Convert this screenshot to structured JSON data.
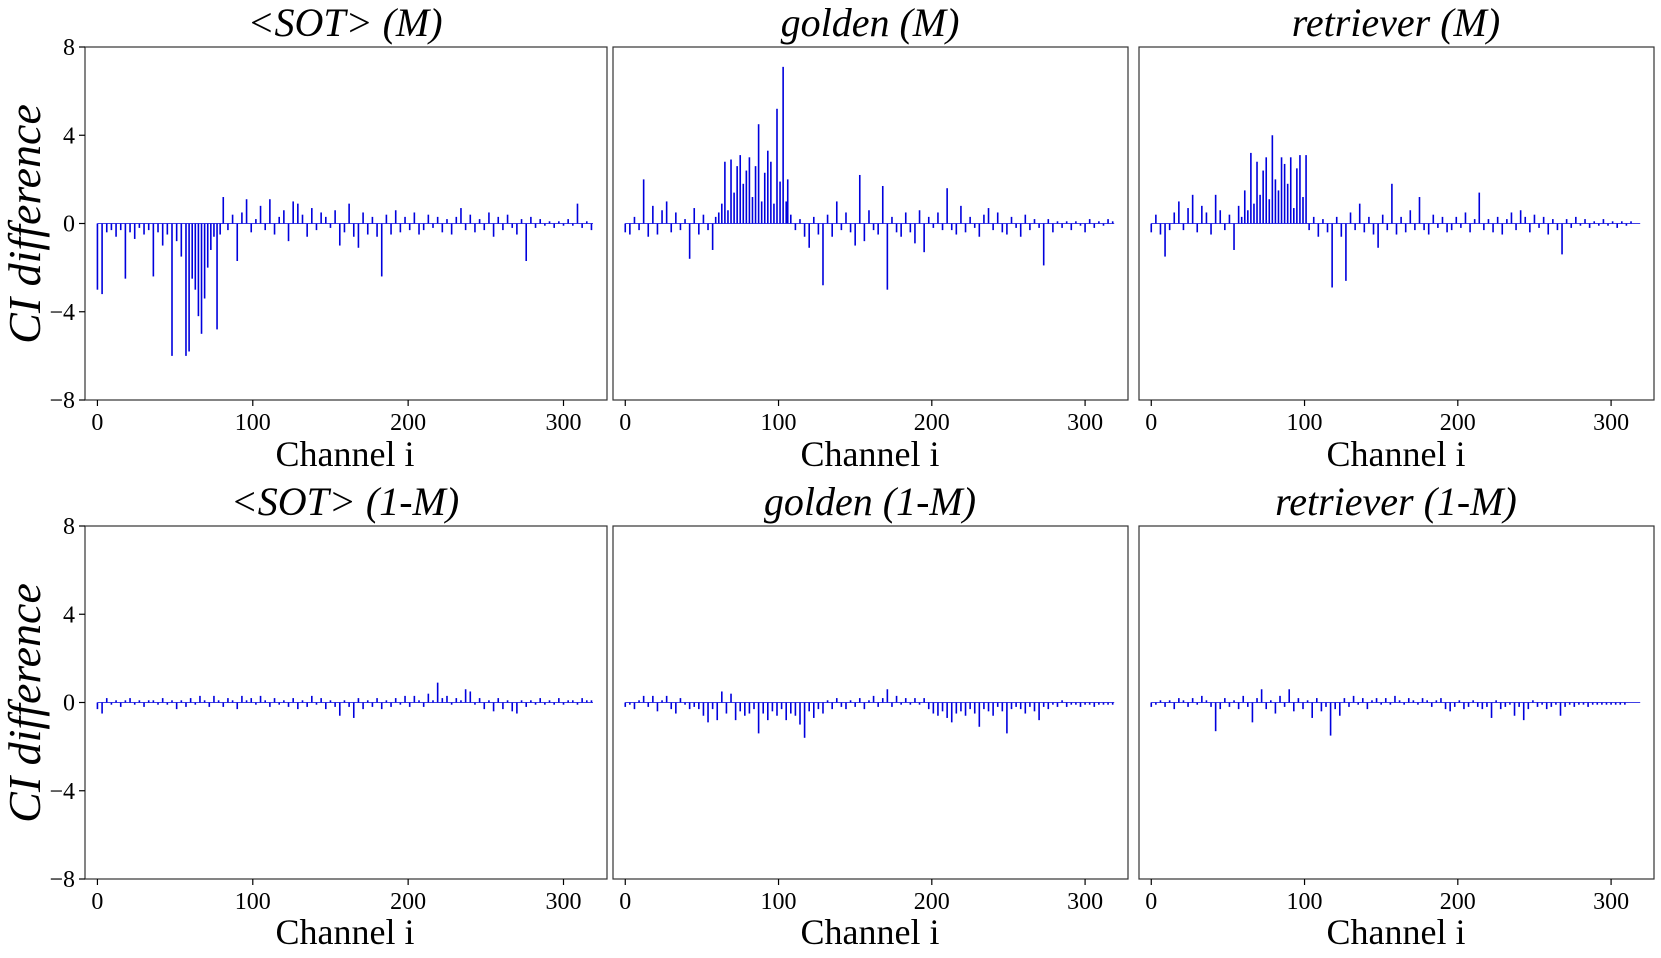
{
  "figure": {
    "y_axis_label": "CI difference",
    "x_axis_label": "Channel i"
  },
  "chart_data": [
    {
      "type": "bar",
      "title": "<SOT> (M)",
      "xlabel": "Channel i",
      "ylabel": "CI difference",
      "xlim": [
        -8,
        328
      ],
      "ylim": [
        -8,
        8
      ],
      "xticks": [
        0,
        100,
        200,
        300
      ],
      "yticks": [
        8,
        4,
        0,
        -4,
        -8
      ],
      "bar_color": "#0000dd",
      "n_channels": 320,
      "values": {
        "0": -3.0,
        "3": -3.2,
        "6": -0.4,
        "9": -0.3,
        "12": -0.6,
        "15": -0.3,
        "18": -2.5,
        "21": -0.4,
        "24": -0.7,
        "27": -0.2,
        "30": -0.5,
        "33": -0.3,
        "36": -2.4,
        "39": -0.4,
        "42": -1.0,
        "45": -0.5,
        "48": -6.0,
        "51": -0.8,
        "54": -1.5,
        "57": -6.0,
        "59": -5.8,
        "61": -2.5,
        "63": -3.0,
        "65": -4.2,
        "67": -5.0,
        "69": -3.4,
        "71": -2.0,
        "73": -1.2,
        "75": -0.6,
        "77": -4.8,
        "79": -0.5,
        "81": 1.2,
        "84": -0.3,
        "87": 0.4,
        "90": -1.7,
        "93": 0.5,
        "96": 1.1,
        "99": -0.4,
        "102": 0.2,
        "105": 0.8,
        "108": -0.3,
        "111": 1.1,
        "114": -0.5,
        "117": 0.3,
        "120": 0.6,
        "123": -0.8,
        "126": 1.0,
        "129": 0.9,
        "132": 0.4,
        "135": -0.6,
        "138": 0.7,
        "141": -0.3,
        "144": 0.5,
        "147": 0.3,
        "150": -0.2,
        "153": 0.6,
        "156": -1.0,
        "159": -0.4,
        "162": 0.9,
        "165": -0.6,
        "168": -1.1,
        "171": 0.5,
        "174": -0.5,
        "177": 0.3,
        "180": -0.6,
        "183": -2.4,
        "186": 0.4,
        "189": -0.5,
        "192": 0.6,
        "195": -0.4,
        "198": 0.3,
        "201": -0.3,
        "204": 0.5,
        "207": -0.5,
        "210": -0.3,
        "213": 0.4,
        "216": -0.2,
        "219": 0.3,
        "222": -0.4,
        "225": 0.2,
        "228": -0.5,
        "231": 0.3,
        "234": 0.7,
        "237": -0.3,
        "240": 0.4,
        "243": -0.4,
        "246": 0.2,
        "249": -0.3,
        "252": 0.5,
        "255": -0.6,
        "258": 0.3,
        "261": -0.3,
        "264": 0.4,
        "267": -0.2,
        "270": -0.5,
        "273": 0.2,
        "276": -1.7,
        "279": 0.3,
        "282": -0.2,
        "285": 0.2,
        "288": -0.1,
        "291": 0.1,
        "294": -0.2,
        "297": 0.1,
        "300": -0.1,
        "303": 0.2,
        "306": -0.1,
        "309": 0.9,
        "312": -0.2,
        "315": 0.1,
        "318": -0.3
      }
    },
    {
      "type": "bar",
      "title": "golden (M)",
      "xlabel": "Channel i",
      "ylabel": "",
      "xlim": [
        -8,
        328
      ],
      "ylim": [
        -8,
        8
      ],
      "xticks": [
        0,
        100,
        200,
        300
      ],
      "yticks": [],
      "bar_color": "#0000dd",
      "n_channels": 320,
      "values": {
        "0": -0.4,
        "3": -0.5,
        "6": 0.3,
        "9": -0.3,
        "12": 2.0,
        "15": -0.6,
        "18": 0.8,
        "21": -0.5,
        "24": 0.6,
        "27": 1.0,
        "30": -0.4,
        "33": 0.5,
        "36": -0.3,
        "39": 0.2,
        "42": -1.6,
        "45": 0.7,
        "48": -0.5,
        "51": 0.4,
        "54": -0.3,
        "57": -1.2,
        "59": 0.3,
        "61": 0.5,
        "63": 0.9,
        "65": 2.8,
        "67": 0.6,
        "69": 2.9,
        "71": 1.4,
        "73": 2.6,
        "75": 3.1,
        "77": 1.8,
        "79": 2.4,
        "81": 3.0,
        "83": 1.2,
        "85": 2.6,
        "87": 4.5,
        "89": 1.0,
        "91": 2.3,
        "93": 3.3,
        "95": 2.8,
        "97": 0.9,
        "99": 5.2,
        "101": 1.9,
        "103": 7.1,
        "105": 1.0,
        "106": 2.0,
        "108": 0.4,
        "111": -0.3,
        "114": 0.2,
        "117": -0.6,
        "120": -1.1,
        "123": 0.3,
        "126": -0.5,
        "129": -2.8,
        "132": 0.4,
        "135": -0.6,
        "138": 1.0,
        "141": -0.3,
        "144": 0.5,
        "147": -0.4,
        "150": -1.0,
        "153": 2.2,
        "156": -0.8,
        "159": 0.6,
        "162": -0.3,
        "165": -0.5,
        "168": 1.7,
        "171": -3.0,
        "174": 0.3,
        "177": -0.4,
        "180": -0.6,
        "183": 0.5,
        "186": -0.4,
        "189": -0.9,
        "192": 0.6,
        "195": -1.3,
        "198": 0.3,
        "201": -0.2,
        "204": 0.5,
        "207": -0.3,
        "210": 1.6,
        "213": -0.3,
        "216": -0.5,
        "219": 0.8,
        "222": -0.4,
        "225": 0.3,
        "228": -0.2,
        "231": -0.6,
        "234": 0.4,
        "237": 0.7,
        "240": -0.3,
        "243": 0.5,
        "246": -0.4,
        "249": -0.5,
        "252": 0.3,
        "255": -0.2,
        "258": -0.6,
        "261": 0.4,
        "264": -0.3,
        "267": 0.2,
        "270": -0.2,
        "273": -1.9,
        "276": 0.2,
        "279": -0.4,
        "282": 0.1,
        "285": -0.2,
        "288": 0.1,
        "291": -0.3,
        "294": 0.1,
        "297": -0.1,
        "300": -0.4,
        "303": 0.2,
        "306": -0.2,
        "309": 0.1,
        "312": -0.1,
        "315": 0.2,
        "318": 0.1
      }
    },
    {
      "type": "bar",
      "title": "retriever (M)",
      "xlabel": "Channel i",
      "ylabel": "",
      "xlim": [
        -8,
        328
      ],
      "ylim": [
        -8,
        8
      ],
      "xticks": [
        0,
        100,
        200,
        300
      ],
      "yticks": [],
      "bar_color": "#0000dd",
      "n_channels": 320,
      "values": {
        "0": -0.4,
        "3": 0.4,
        "6": -0.5,
        "9": -1.5,
        "12": -0.3,
        "15": 0.5,
        "18": 1.0,
        "21": -0.3,
        "24": 0.7,
        "27": 1.3,
        "30": -0.4,
        "33": 0.8,
        "36": 0.5,
        "39": -0.5,
        "42": 1.3,
        "45": 0.6,
        "48": -0.3,
        "51": 0.4,
        "54": -1.2,
        "57": 0.8,
        "59": 0.3,
        "61": 1.5,
        "63": 0.6,
        "65": 3.2,
        "67": 0.9,
        "69": 2.8,
        "71": 1.3,
        "73": 2.4,
        "75": 3.0,
        "77": 1.1,
        "79": 4.0,
        "81": 2.0,
        "83": 1.5,
        "85": 3.0,
        "87": 2.7,
        "89": 1.8,
        "91": 3.0,
        "93": 0.7,
        "95": 2.5,
        "97": 3.1,
        "99": 1.2,
        "101": 3.1,
        "103": -0.3,
        "106": 0.3,
        "109": -0.6,
        "112": 0.2,
        "115": -0.4,
        "118": -2.9,
        "121": 0.3,
        "124": -0.6,
        "127": -2.6,
        "130": 0.5,
        "133": -0.3,
        "136": 0.9,
        "139": -0.4,
        "142": 0.3,
        "145": -0.5,
        "148": -1.1,
        "151": 0.4,
        "154": -0.3,
        "157": 1.8,
        "160": -0.5,
        "163": 0.3,
        "166": -0.4,
        "169": 0.6,
        "172": -0.3,
        "175": 1.2,
        "178": -0.3,
        "181": -0.5,
        "184": 0.4,
        "187": -0.2,
        "190": 0.3,
        "193": -0.4,
        "196": -0.3,
        "199": 0.3,
        "202": -0.2,
        "205": 0.5,
        "208": -0.4,
        "211": 0.2,
        "214": 1.4,
        "217": -0.3,
        "220": 0.2,
        "223": -0.4,
        "226": 0.3,
        "229": -0.5,
        "232": 0.2,
        "235": 0.5,
        "238": -0.3,
        "241": 0.6,
        "244": 0.3,
        "247": -0.4,
        "250": 0.4,
        "253": -0.2,
        "256": 0.3,
        "259": -0.5,
        "262": 0.2,
        "265": -0.3,
        "268": -1.4,
        "271": 0.2,
        "274": -0.2,
        "277": 0.3,
        "280": -0.1,
        "283": 0.2,
        "286": -0.2,
        "289": 0.1,
        "292": -0.1,
        "295": 0.2,
        "298": -0.1,
        "301": 0.1,
        "304": -0.2,
        "307": 0.1,
        "310": -0.1,
        "313": 0.1
      }
    },
    {
      "type": "bar",
      "title": "<SOT> (1-M)",
      "xlabel": "Channel i",
      "ylabel": "CI difference",
      "xlim": [
        -8,
        328
      ],
      "ylim": [
        -8,
        8
      ],
      "xticks": [
        0,
        100,
        200,
        300
      ],
      "yticks": [
        8,
        4,
        0,
        -4,
        -8
      ],
      "bar_color": "#0000dd",
      "n_channels": 320,
      "values": {
        "0": -0.3,
        "3": -0.5,
        "6": 0.2,
        "9": -0.1,
        "12": 0.1,
        "15": -0.2,
        "18": 0.1,
        "21": 0.2,
        "24": -0.1,
        "27": 0.1,
        "30": -0.2,
        "33": 0.1,
        "36": 0.1,
        "39": -0.1,
        "42": 0.2,
        "45": -0.1,
        "48": 0.1,
        "51": -0.3,
        "54": 0.1,
        "57": -0.2,
        "60": 0.2,
        "63": -0.1,
        "66": 0.3,
        "69": 0.1,
        "72": -0.2,
        "75": 0.3,
        "78": 0.1,
        "81": -0.2,
        "84": 0.2,
        "87": 0.1,
        "90": -0.3,
        "93": 0.3,
        "96": 0.1,
        "99": 0.2,
        "102": -0.1,
        "105": 0.3,
        "108": 0.1,
        "111": -0.2,
        "114": 0.2,
        "117": -0.1,
        "120": 0.1,
        "123": -0.2,
        "126": 0.2,
        "129": -0.3,
        "132": 0.1,
        "135": -0.2,
        "138": 0.3,
        "141": -0.1,
        "144": 0.2,
        "147": -0.3,
        "150": 0.1,
        "153": -0.2,
        "156": -0.6,
        "159": 0.1,
        "162": -0.2,
        "165": -0.7,
        "168": 0.2,
        "171": -0.3,
        "174": 0.1,
        "177": -0.2,
        "180": 0.2,
        "183": -0.3,
        "186": 0.1,
        "189": -0.2,
        "192": 0.2,
        "195": -0.1,
        "198": 0.3,
        "201": -0.2,
        "204": 0.3,
        "207": 0.1,
        "210": -0.2,
        "213": 0.4,
        "216": 0.1,
        "219": 0.9,
        "222": 0.2,
        "225": 0.3,
        "228": -0.1,
        "231": 0.2,
        "234": 0.1,
        "237": 0.6,
        "240": 0.5,
        "243": -0.1,
        "246": 0.2,
        "249": -0.3,
        "252": 0.1,
        "255": -0.4,
        "258": 0.2,
        "261": -0.3,
        "264": 0.1,
        "267": -0.4,
        "270": -0.5,
        "273": 0.1,
        "276": -0.2,
        "279": 0.1,
        "282": -0.1,
        "285": 0.2,
        "288": -0.1,
        "291": 0.1,
        "294": -0.1,
        "297": 0.2,
        "300": -0.1,
        "303": 0.1,
        "306": 0.1,
        "309": -0.1,
        "312": 0.2,
        "315": 0.1,
        "318": 0.1
      }
    },
    {
      "type": "bar",
      "title": "golden (1-M)",
      "xlabel": "Channel i",
      "ylabel": "",
      "xlim": [
        -8,
        328
      ],
      "ylim": [
        -8,
        8
      ],
      "xticks": [
        0,
        100,
        200,
        300
      ],
      "yticks": [],
      "bar_color": "#0000dd",
      "n_channels": 320,
      "values": {
        "0": -0.2,
        "3": -0.1,
        "6": -0.3,
        "9": 0.1,
        "12": 0.3,
        "15": -0.2,
        "18": 0.3,
        "21": -0.4,
        "24": 0.1,
        "27": 0.3,
        "30": -0.3,
        "33": -0.5,
        "36": 0.2,
        "39": -0.1,
        "42": -0.3,
        "45": -0.2,
        "48": -0.3,
        "51": -0.6,
        "54": -0.9,
        "57": -0.3,
        "60": -0.8,
        "63": 0.5,
        "66": -0.5,
        "69": 0.4,
        "72": -0.8,
        "75": -0.4,
        "78": -0.6,
        "81": -0.5,
        "84": -0.3,
        "87": -1.4,
        "90": -0.5,
        "93": -0.8,
        "96": -0.4,
        "99": -0.6,
        "102": -0.3,
        "105": -0.8,
        "108": -0.5,
        "111": -0.6,
        "114": -1.0,
        "117": -1.6,
        "120": -0.4,
        "123": -0.7,
        "126": -0.3,
        "129": -0.5,
        "132": 0.1,
        "135": -0.3,
        "138": 0.2,
        "141": -0.2,
        "144": -0.3,
        "147": 0.1,
        "150": -0.2,
        "153": 0.2,
        "156": -0.3,
        "159": 0.1,
        "162": 0.3,
        "165": -0.2,
        "168": 0.2,
        "171": 0.6,
        "174": -0.2,
        "177": 0.3,
        "180": -0.1,
        "183": 0.2,
        "186": -0.1,
        "189": 0.2,
        "192": -0.1,
        "195": 0.2,
        "198": -0.3,
        "201": -0.5,
        "204": -0.6,
        "207": -0.4,
        "210": -0.7,
        "213": -0.9,
        "216": -0.5,
        "219": -0.4,
        "222": -0.6,
        "225": -0.3,
        "228": -0.5,
        "231": -1.1,
        "234": -0.3,
        "237": -0.4,
        "240": -0.6,
        "243": -0.2,
        "246": -0.4,
        "249": -1.4,
        "252": -0.3,
        "255": -0.2,
        "258": -0.3,
        "261": -0.5,
        "264": -0.2,
        "267": -0.4,
        "270": -0.8,
        "273": -0.2,
        "276": -0.3,
        "279": -0.1,
        "282": -0.2,
        "285": 0.1,
        "288": -0.2,
        "291": -0.1,
        "294": -0.1,
        "297": -0.2,
        "300": -0.1,
        "303": -0.1,
        "306": -0.2,
        "309": -0.1,
        "312": -0.1,
        "315": -0.1,
        "318": -0.1
      }
    },
    {
      "type": "bar",
      "title": "retriever (1-M)",
      "xlabel": "Channel i",
      "ylabel": "",
      "xlim": [
        -8,
        328
      ],
      "ylim": [
        -8,
        8
      ],
      "xticks": [
        0,
        100,
        200,
        300
      ],
      "yticks": [],
      "bar_color": "#0000dd",
      "n_channels": 320,
      "values": {
        "0": -0.2,
        "3": -0.1,
        "6": 0.1,
        "9": -0.2,
        "12": 0.1,
        "15": -0.3,
        "18": 0.2,
        "21": 0.1,
        "24": -0.2,
        "27": 0.2,
        "30": -0.1,
        "33": 0.3,
        "36": 0.1,
        "39": -0.2,
        "42": -1.3,
        "45": -0.3,
        "48": 0.2,
        "51": -0.2,
        "54": 0.1,
        "57": -0.3,
        "60": 0.3,
        "63": -0.2,
        "66": -0.9,
        "69": 0.2,
        "72": 0.6,
        "75": -0.3,
        "78": 0.1,
        "81": -0.5,
        "84": 0.3,
        "87": -0.2,
        "90": 0.6,
        "93": -0.4,
        "96": 0.2,
        "99": -0.3,
        "102": 0.1,
        "105": -0.7,
        "108": 0.2,
        "111": -0.4,
        "114": -0.2,
        "117": -1.5,
        "120": -0.3,
        "123": -0.6,
        "126": 0.2,
        "129": -0.2,
        "132": 0.3,
        "135": -0.1,
        "138": 0.2,
        "141": -0.3,
        "144": 0.1,
        "147": 0.2,
        "150": -0.1,
        "153": 0.2,
        "156": -0.1,
        "159": 0.3,
        "162": 0.1,
        "165": -0.1,
        "168": 0.2,
        "171": 0.1,
        "174": -0.1,
        "177": 0.2,
        "180": 0.1,
        "183": -0.2,
        "186": 0.1,
        "189": 0.2,
        "192": -0.3,
        "195": -0.4,
        "198": -0.2,
        "201": 0.1,
        "204": -0.3,
        "207": -0.2,
        "210": 0.1,
        "213": -0.2,
        "216": -0.3,
        "219": -0.2,
        "222": -0.7,
        "225": 0.1,
        "228": -0.3,
        "231": -0.2,
        "234": -0.1,
        "237": -0.6,
        "240": -0.2,
        "243": -0.8,
        "246": -0.3,
        "249": 0.1,
        "252": -0.2,
        "255": -0.1,
        "258": -0.3,
        "261": -0.2,
        "264": -0.1,
        "267": -0.6,
        "270": -0.2,
        "273": -0.1,
        "276": -0.2,
        "279": -0.1,
        "282": -0.1,
        "285": -0.2,
        "288": -0.1,
        "291": -0.1,
        "294": -0.1,
        "297": -0.1,
        "300": -0.1,
        "303": -0.1,
        "306": -0.1,
        "309": -0.1
      }
    }
  ]
}
